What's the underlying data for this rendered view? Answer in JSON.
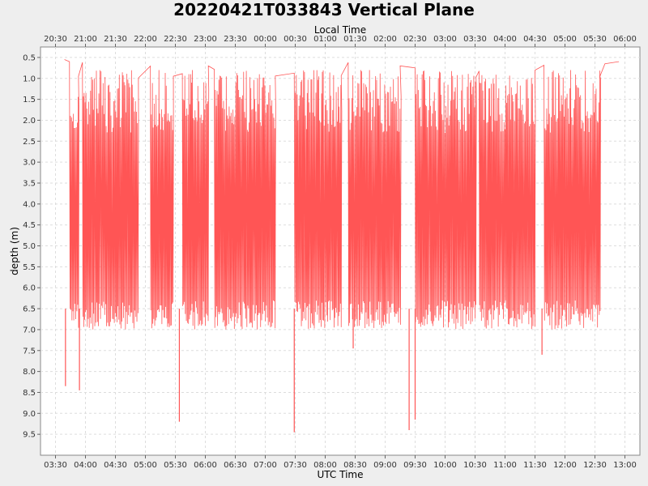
{
  "chart_data": {
    "type": "line",
    "title": "20220421T033843 Vertical Plane",
    "xlabel": "UTC Time",
    "x2label": "Local Time",
    "ylabel": "depth (m)",
    "y_inverted": true,
    "ylim": [
      0.25,
      10.0
    ],
    "xlim": [
      "03:15",
      "13:15"
    ],
    "grid": true,
    "series_color": "#ff5555",
    "utc_ticks": [
      "03:30",
      "04:00",
      "04:30",
      "05:00",
      "05:30",
      "06:00",
      "06:30",
      "07:00",
      "07:30",
      "08:00",
      "08:30",
      "09:00",
      "09:30",
      "10:00",
      "10:30",
      "11:00",
      "11:30",
      "12:00",
      "12:30",
      "13:00"
    ],
    "local_ticks": [
      "20:30",
      "21:00",
      "21:30",
      "22:00",
      "22:30",
      "23:00",
      "23:30",
      "00:00",
      "00:30",
      "01:00",
      "01:30",
      "02:00",
      "02:30",
      "03:00",
      "03:30",
      "04:00",
      "04:30",
      "05:00",
      "05:30",
      "06:00"
    ],
    "y_ticks": [
      0.5,
      1.0,
      1.5,
      2.0,
      2.5,
      3.0,
      3.5,
      4.0,
      4.5,
      5.0,
      5.5,
      6.0,
      6.5,
      7.0,
      7.5,
      8.0,
      8.5,
      9.0,
      9.5
    ],
    "series": [
      {
        "x_start": "03:39",
        "x_end": "12:54",
        "dive_bottom_range_m": [
          6.3,
          7.0
        ],
        "yo_top_range_m": [
          0.8,
          2.3
        ],
        "yo_blocks": [
          [
            "03:44",
            "03:53"
          ],
          [
            "03:57",
            "04:53"
          ],
          [
            "05:05",
            "05:28"
          ],
          [
            "05:37",
            "06:03"
          ],
          [
            "06:09",
            "07:10"
          ],
          [
            "07:29",
            "08:16"
          ],
          [
            "08:23",
            "09:15"
          ],
          [
            "09:30",
            "10:31"
          ],
          [
            "10:34",
            "11:30"
          ],
          [
            "11:39",
            "12:35"
          ]
        ],
        "spikes": [
          {
            "x": "03:40",
            "depth": 8.35
          },
          {
            "x": "03:54",
            "depth": 8.45
          },
          {
            "x": "05:34",
            "depth": 9.2
          },
          {
            "x": "07:29",
            "depth": 9.45
          },
          {
            "x": "08:28",
            "depth": 7.45
          },
          {
            "x": "09:24",
            "depth": 9.4
          },
          {
            "x": "09:30",
            "depth": 9.15
          },
          {
            "x": "11:37",
            "depth": 7.6
          }
        ],
        "end_x": "12:54",
        "end_depth": 0.6
      }
    ]
  }
}
